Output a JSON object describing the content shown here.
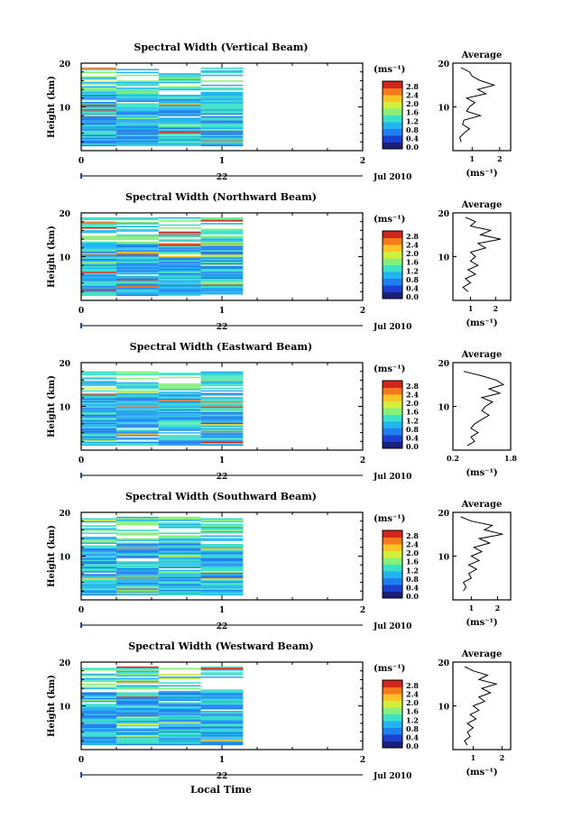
{
  "figure": {
    "xlabel": "Local Time",
    "xticks": [
      "0",
      "1",
      "2"
    ],
    "date_day": "22",
    "date_label": "Jul 2010",
    "ylabel": "Height (km)",
    "yticks": [
      "20",
      "10"
    ],
    "colorbar_unit": "(ms⁻¹)",
    "colorbar_ticks": [
      "2.8",
      "2.4",
      "2.0",
      "1.6",
      "1.2",
      "0.8",
      "0.4",
      "0.0"
    ],
    "avg_title": "Average",
    "avg_unit": "(ms⁻¹)"
  },
  "colors": {
    "colormap": [
      "#1a1f7a",
      "#1c3fd0",
      "#1e7ff0",
      "#22b4f0",
      "#3be0c8",
      "#86f07a",
      "#d4ee3c",
      "#fbc424",
      "#f57a1c",
      "#d2261c"
    ]
  },
  "chart_data": [
    {
      "type": "heatmap",
      "title": "Spectral Width (Vertical Beam)",
      "x_range": [
        0,
        2
      ],
      "y_range": [
        0,
        20
      ],
      "x_data_end": 1.15,
      "avg_xticks": [
        "1",
        "2"
      ],
      "avg_xrange": [
        0.3,
        2.4
      ],
      "avg_top": 19,
      "avg_profile": [
        [
          0.6,
          2
        ],
        [
          0.55,
          3
        ],
        [
          0.7,
          4
        ],
        [
          0.9,
          5
        ],
        [
          0.65,
          6
        ],
        [
          0.7,
          7
        ],
        [
          1.3,
          8
        ],
        [
          0.8,
          9
        ],
        [
          0.9,
          10
        ],
        [
          1.1,
          11
        ],
        [
          0.8,
          12
        ],
        [
          1.5,
          13
        ],
        [
          1.2,
          14
        ],
        [
          1.8,
          15
        ],
        [
          1.3,
          16
        ],
        [
          1.0,
          17
        ],
        [
          0.9,
          18
        ],
        [
          0.6,
          19
        ]
      ]
    },
    {
      "type": "heatmap",
      "title": "Spectral Width (Northward Beam)",
      "x_range": [
        0,
        2
      ],
      "y_range": [
        0,
        20
      ],
      "x_data_end": 1.15,
      "avg_xticks": [
        "1",
        "2"
      ],
      "avg_xrange": [
        0.3,
        2.6
      ],
      "avg_top": 19,
      "avg_profile": [
        [
          0.9,
          2
        ],
        [
          0.7,
          3
        ],
        [
          1.0,
          4
        ],
        [
          0.8,
          5
        ],
        [
          1.2,
          6
        ],
        [
          0.9,
          7
        ],
        [
          1.3,
          8
        ],
        [
          1.0,
          9
        ],
        [
          1.2,
          10
        ],
        [
          1.0,
          11
        ],
        [
          1.6,
          12
        ],
        [
          1.3,
          13
        ],
        [
          2.2,
          14
        ],
        [
          1.4,
          15
        ],
        [
          1.8,
          16
        ],
        [
          1.0,
          17
        ],
        [
          1.2,
          18
        ],
        [
          0.8,
          19
        ]
      ]
    },
    {
      "type": "heatmap",
      "title": "Spectral Width (Eastward Beam)",
      "x_range": [
        0,
        2
      ],
      "y_range": [
        0,
        20
      ],
      "x_data_end": 1.15,
      "avg_xticks": [
        "0.2",
        "1.8"
      ],
      "avg_xrange": [
        0.2,
        1.8
      ],
      "avg_top": 18,
      "avg_profile": [
        [
          0.6,
          1
        ],
        [
          0.8,
          2
        ],
        [
          0.7,
          3
        ],
        [
          0.9,
          4
        ],
        [
          0.7,
          5
        ],
        [
          0.8,
          6
        ],
        [
          1.0,
          7
        ],
        [
          1.2,
          8
        ],
        [
          1.0,
          9
        ],
        [
          1.1,
          10
        ],
        [
          1.3,
          11
        ],
        [
          1.0,
          12
        ],
        [
          1.5,
          13
        ],
        [
          1.2,
          14
        ],
        [
          1.6,
          15
        ],
        [
          1.4,
          16
        ],
        [
          1.0,
          17
        ],
        [
          0.5,
          18
        ]
      ]
    },
    {
      "type": "heatmap",
      "title": "Spectral Width (Southward Beam)",
      "x_range": [
        0,
        2
      ],
      "y_range": [
        0,
        20
      ],
      "x_data_end": 1.15,
      "avg_xticks": [
        "1",
        "2"
      ],
      "avg_xrange": [
        0.3,
        2.5
      ],
      "avg_top": 19,
      "avg_profile": [
        [
          0.7,
          2
        ],
        [
          0.8,
          3
        ],
        [
          0.7,
          4
        ],
        [
          1.0,
          5
        ],
        [
          0.9,
          6
        ],
        [
          1.2,
          7
        ],
        [
          0.9,
          8
        ],
        [
          1.3,
          9
        ],
        [
          1.0,
          10
        ],
        [
          1.4,
          11
        ],
        [
          1.1,
          12
        ],
        [
          1.7,
          13
        ],
        [
          1.3,
          14
        ],
        [
          2.2,
          15
        ],
        [
          1.5,
          16
        ],
        [
          1.8,
          17
        ],
        [
          1.0,
          18
        ],
        [
          0.6,
          19
        ]
      ]
    },
    {
      "type": "heatmap",
      "title": "Spectral Width (Westward Beam)",
      "x_range": [
        0,
        2
      ],
      "y_range": [
        0,
        20
      ],
      "x_data_end": 1.15,
      "avg_xticks": [
        "1",
        "2"
      ],
      "avg_xrange": [
        0.3,
        2.3
      ],
      "avg_top": 19,
      "avg_profile": [
        [
          0.8,
          1
        ],
        [
          0.7,
          2
        ],
        [
          0.9,
          3
        ],
        [
          0.8,
          4
        ],
        [
          1.0,
          5
        ],
        [
          0.8,
          6
        ],
        [
          1.1,
          7
        ],
        [
          0.9,
          8
        ],
        [
          1.2,
          9
        ],
        [
          1.0,
          10
        ],
        [
          1.4,
          11
        ],
        [
          1.2,
          12
        ],
        [
          1.6,
          13
        ],
        [
          1.3,
          14
        ],
        [
          1.8,
          15
        ],
        [
          1.2,
          16
        ],
        [
          1.5,
          17
        ],
        [
          1.0,
          18
        ],
        [
          0.7,
          19
        ]
      ]
    }
  ]
}
